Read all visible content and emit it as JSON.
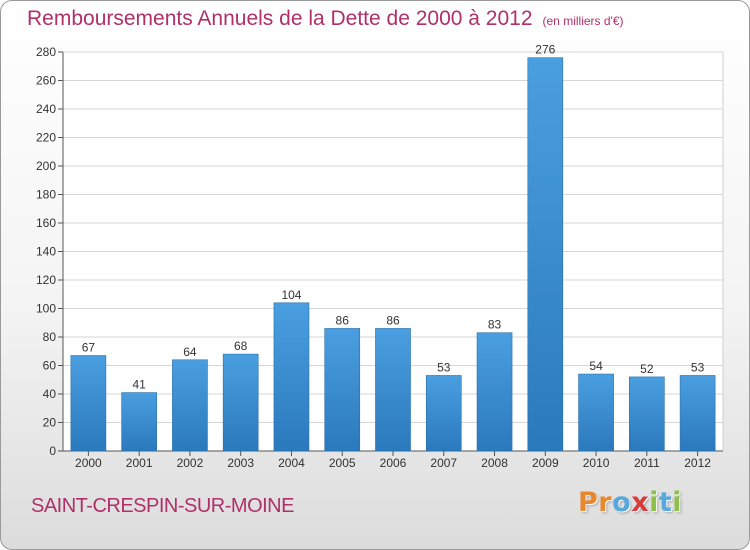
{
  "chart_data": {
    "type": "bar",
    "title": "Remboursements Annuels de la Dette de 2000 à 2012",
    "unit_note": "(en milliers d'€)",
    "categories": [
      "2000",
      "2001",
      "2002",
      "2003",
      "2004",
      "2005",
      "2006",
      "2007",
      "2008",
      "2009",
      "2010",
      "2011",
      "2012"
    ],
    "values": [
      67,
      41,
      64,
      68,
      104,
      86,
      86,
      53,
      83,
      276,
      54,
      52,
      53
    ],
    "ylim": [
      0,
      280
    ],
    "yticks": [
      0,
      20,
      40,
      60,
      80,
      100,
      120,
      140,
      160,
      180,
      200,
      220,
      240,
      260,
      280
    ],
    "grid": true,
    "bar_color": "#4a9fe0",
    "bar_color_dark": "#2b79bd"
  },
  "footer": {
    "town": "SAINT-CRESPIN-SUR-MOINE",
    "logo_letters": [
      {
        "char": "P",
        "color": "#e8872b"
      },
      {
        "char": "r",
        "color": "#e8872b"
      },
      {
        "char": "o",
        "color": "#59a8dc"
      },
      {
        "char": "x",
        "color": "#d83b3b"
      },
      {
        "char": "i",
        "color": "#8cc04a"
      },
      {
        "char": "t",
        "color": "#59a8dc"
      },
      {
        "char": "i",
        "color": "#8cc04a"
      }
    ]
  }
}
